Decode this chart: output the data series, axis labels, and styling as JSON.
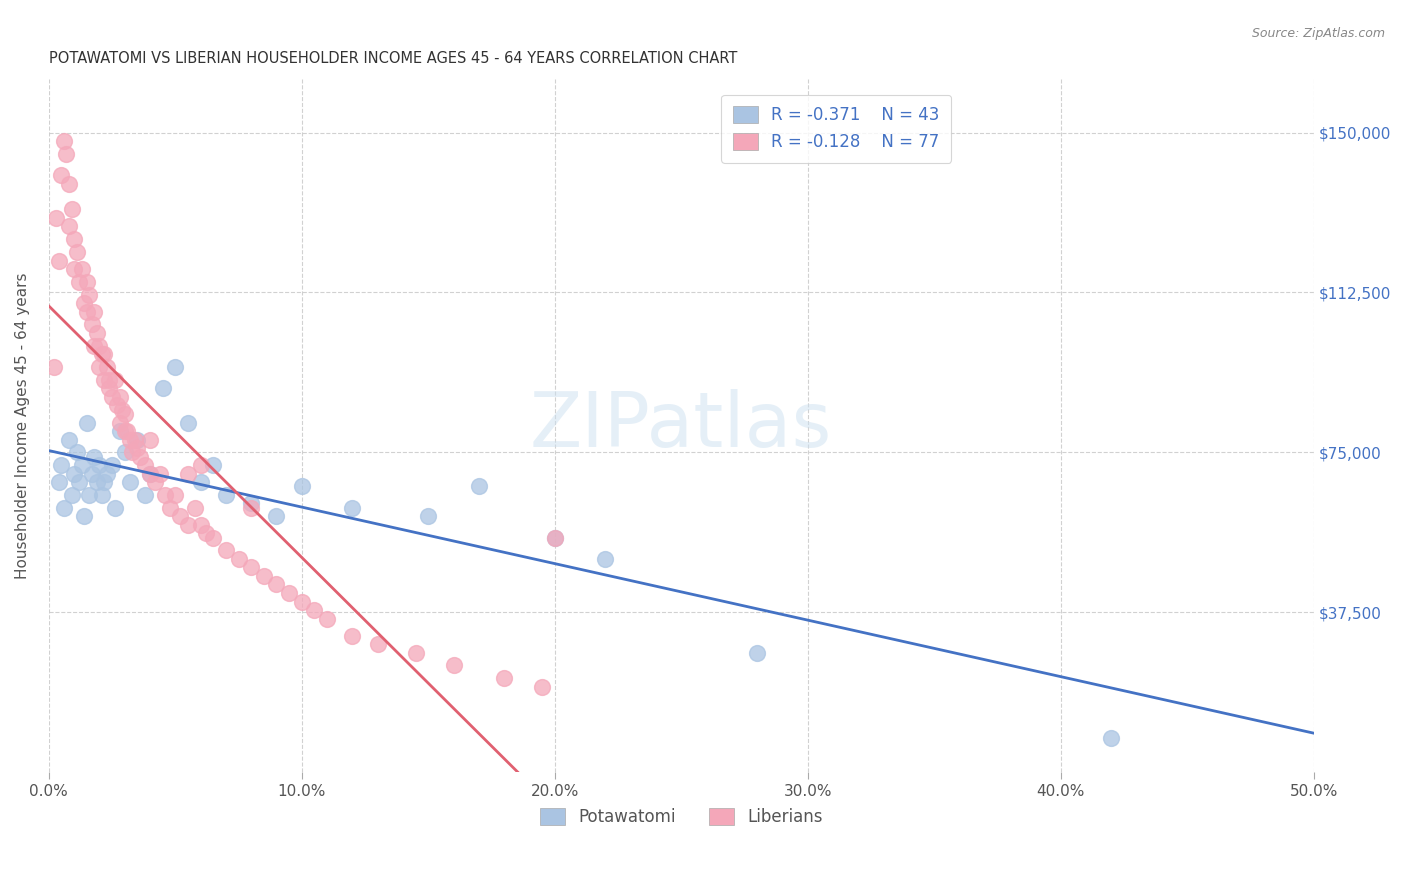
{
  "title": "POTAWATOMI VS LIBERIAN HOUSEHOLDER INCOME AGES 45 - 64 YEARS CORRELATION CHART",
  "source": "Source: ZipAtlas.com",
  "xlabel_ticks": [
    "0.0%",
    "10.0%",
    "20.0%",
    "30.0%",
    "40.0%",
    "50.0%"
  ],
  "ylabel_label": "Householder Income Ages 45 - 64 years",
  "ylabel_ticks": [
    "$37,500",
    "$75,000",
    "$112,500",
    "$150,000"
  ],
  "ylabel_values": [
    37500,
    75000,
    112500,
    150000
  ],
  "xlim": [
    0.0,
    0.5
  ],
  "ylim": [
    0,
    162500
  ],
  "legend_r1": "R = -0.371",
  "legend_n1": "N = 43",
  "legend_r2": "R = -0.128",
  "legend_n2": "N = 77",
  "potawatomi_color": "#aac4e2",
  "liberian_color": "#f4a7b9",
  "trendline_potawatomi": "#4472c4",
  "trendline_liberian": "#e06070",
  "watermark": "ZIPatlas",
  "background": "#ffffff",
  "grid_color": "#cccccc",
  "potawatomi_x": [
    0.004,
    0.005,
    0.006,
    0.008,
    0.009,
    0.01,
    0.011,
    0.012,
    0.013,
    0.014,
    0.015,
    0.016,
    0.017,
    0.018,
    0.019,
    0.02,
    0.021,
    0.022,
    0.023,
    0.025,
    0.026,
    0.028,
    0.03,
    0.032,
    0.035,
    0.038,
    0.04,
    0.045,
    0.05,
    0.055,
    0.06,
    0.065,
    0.07,
    0.08,
    0.09,
    0.1,
    0.12,
    0.15,
    0.17,
    0.2,
    0.22,
    0.28,
    0.42
  ],
  "potawatomi_y": [
    68000,
    72000,
    62000,
    78000,
    65000,
    70000,
    75000,
    68000,
    72000,
    60000,
    82000,
    65000,
    70000,
    74000,
    68000,
    72000,
    65000,
    68000,
    70000,
    72000,
    62000,
    80000,
    75000,
    68000,
    78000,
    65000,
    70000,
    90000,
    95000,
    82000,
    68000,
    72000,
    65000,
    63000,
    60000,
    67000,
    62000,
    60000,
    67000,
    55000,
    50000,
    28000,
    8000
  ],
  "liberian_x": [
    0.002,
    0.003,
    0.004,
    0.005,
    0.006,
    0.007,
    0.008,
    0.008,
    0.009,
    0.01,
    0.01,
    0.011,
    0.012,
    0.013,
    0.014,
    0.015,
    0.015,
    0.016,
    0.017,
    0.018,
    0.018,
    0.019,
    0.02,
    0.02,
    0.021,
    0.022,
    0.022,
    0.023,
    0.024,
    0.024,
    0.025,
    0.026,
    0.027,
    0.028,
    0.028,
    0.029,
    0.03,
    0.03,
    0.031,
    0.032,
    0.033,
    0.034,
    0.035,
    0.036,
    0.038,
    0.04,
    0.042,
    0.044,
    0.046,
    0.048,
    0.05,
    0.052,
    0.055,
    0.058,
    0.06,
    0.062,
    0.065,
    0.07,
    0.075,
    0.08,
    0.085,
    0.09,
    0.095,
    0.1,
    0.105,
    0.11,
    0.12,
    0.13,
    0.145,
    0.16,
    0.18,
    0.195,
    0.04,
    0.055,
    0.06,
    0.08,
    0.2
  ],
  "liberian_y": [
    95000,
    130000,
    120000,
    140000,
    148000,
    145000,
    138000,
    128000,
    132000,
    125000,
    118000,
    122000,
    115000,
    118000,
    110000,
    108000,
    115000,
    112000,
    105000,
    100000,
    108000,
    103000,
    95000,
    100000,
    98000,
    92000,
    98000,
    95000,
    90000,
    92000,
    88000,
    92000,
    86000,
    88000,
    82000,
    85000,
    80000,
    84000,
    80000,
    78000,
    75000,
    78000,
    76000,
    74000,
    72000,
    70000,
    68000,
    70000,
    65000,
    62000,
    65000,
    60000,
    58000,
    62000,
    58000,
    56000,
    55000,
    52000,
    50000,
    48000,
    46000,
    44000,
    42000,
    40000,
    38000,
    36000,
    32000,
    30000,
    28000,
    25000,
    22000,
    20000,
    78000,
    70000,
    72000,
    62000,
    55000
  ]
}
